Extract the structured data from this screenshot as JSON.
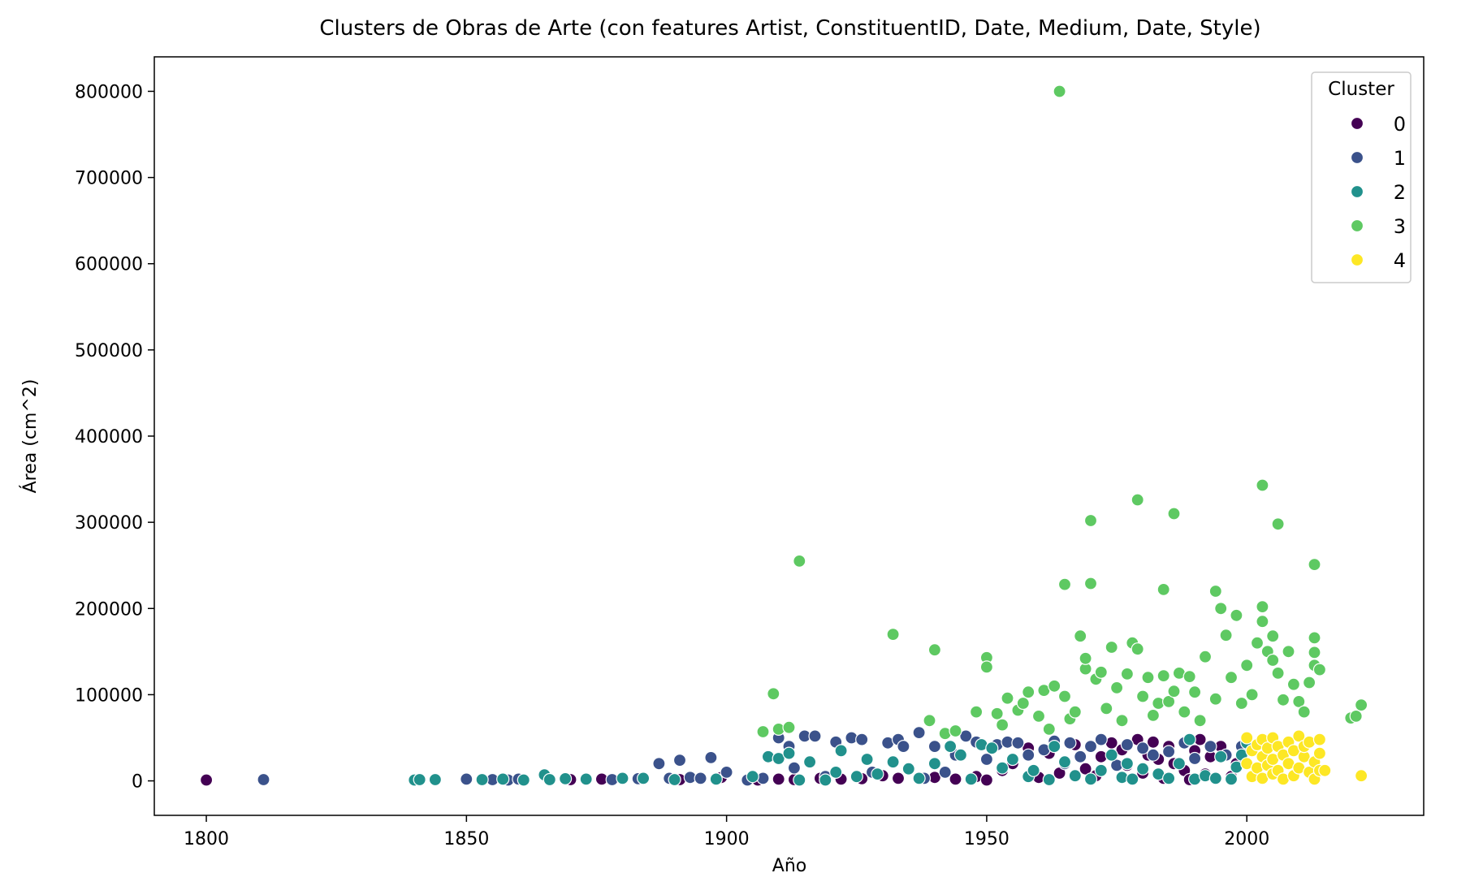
{
  "chart_data": {
    "type": "scatter",
    "title": "Clusters de Obras de Arte (con features Artist, ConstituentID, Date, Medium, Date, Style)",
    "xlabel": "Año",
    "ylabel": "Área (cm^2)",
    "xlim": [
      1790,
      2034
    ],
    "ylim": [
      -40000,
      840000
    ],
    "xticks": [
      1800,
      1850,
      1900,
      1950,
      2000
    ],
    "yticks": [
      0,
      100000,
      200000,
      300000,
      400000,
      500000,
      600000,
      700000,
      800000
    ],
    "grid": false,
    "legend": {
      "title": "Cluster",
      "placement": "top-right"
    },
    "series": [
      {
        "name": "0",
        "color": "#440154",
        "points": [
          [
            1800,
            1000
          ],
          [
            1870,
            1500
          ],
          [
            1876,
            2000
          ],
          [
            1891,
            1500
          ],
          [
            1899,
            4000
          ],
          [
            1906,
            1000
          ],
          [
            1910,
            2000
          ],
          [
            1913,
            1500
          ],
          [
            1918,
            3000
          ],
          [
            1922,
            2000
          ],
          [
            1926,
            2500
          ],
          [
            1930,
            6000
          ],
          [
            1933,
            3000
          ],
          [
            1937,
            2000
          ],
          [
            1940,
            4000
          ],
          [
            1944,
            2000
          ],
          [
            1948,
            5000
          ],
          [
            1950,
            1000
          ],
          [
            1953,
            12000
          ],
          [
            1955,
            20000
          ],
          [
            1958,
            38000
          ],
          [
            1960,
            4000
          ],
          [
            1962,
            32000
          ],
          [
            1964,
            9000
          ],
          [
            1967,
            42000
          ],
          [
            1969,
            14000
          ],
          [
            1971,
            6000
          ],
          [
            1972,
            28000
          ],
          [
            1974,
            44000
          ],
          [
            1976,
            36000
          ],
          [
            1977,
            18000
          ],
          [
            1979,
            48000
          ],
          [
            1980,
            9000
          ],
          [
            1981,
            30000
          ],
          [
            1982,
            45000
          ],
          [
            1983,
            25000
          ],
          [
            1984,
            3000
          ],
          [
            1985,
            40000
          ],
          [
            1986,
            20000
          ],
          [
            1988,
            12000
          ],
          [
            1989,
            1500
          ],
          [
            1990,
            35000
          ],
          [
            1991,
            48000
          ],
          [
            1992,
            8000
          ],
          [
            1993,
            28000
          ],
          [
            1995,
            40000
          ],
          [
            1997,
            5000
          ],
          [
            1998,
            20000
          ]
        ]
      },
      {
        "name": "1",
        "color": "#3b528b",
        "points": [
          [
            1811,
            1500
          ],
          [
            1850,
            2000
          ],
          [
            1855,
            1500
          ],
          [
            1858,
            1000
          ],
          [
            1860,
            2000
          ],
          [
            1878,
            1500
          ],
          [
            1883,
            2500
          ],
          [
            1887,
            20000
          ],
          [
            1889,
            3000
          ],
          [
            1891,
            24000
          ],
          [
            1893,
            4000
          ],
          [
            1895,
            3000
          ],
          [
            1897,
            27000
          ],
          [
            1900,
            10000
          ],
          [
            1904,
            1000
          ],
          [
            1907,
            3000
          ],
          [
            1910,
            50000
          ],
          [
            1912,
            40000
          ],
          [
            1913,
            15000
          ],
          [
            1915,
            52000
          ],
          [
            1917,
            52000
          ],
          [
            1919,
            5000
          ],
          [
            1921,
            45000
          ],
          [
            1924,
            50000
          ],
          [
            1926,
            48000
          ],
          [
            1928,
            10000
          ],
          [
            1931,
            44000
          ],
          [
            1933,
            48000
          ],
          [
            1934,
            40000
          ],
          [
            1937,
            56000
          ],
          [
            1938,
            3000
          ],
          [
            1940,
            40000
          ],
          [
            1942,
            10000
          ],
          [
            1944,
            30000
          ],
          [
            1946,
            52000
          ],
          [
            1948,
            45000
          ],
          [
            1950,
            25000
          ],
          [
            1952,
            42000
          ],
          [
            1954,
            45000
          ],
          [
            1956,
            44000
          ],
          [
            1958,
            30000
          ],
          [
            1961,
            36000
          ],
          [
            1963,
            46000
          ],
          [
            1965,
            20000
          ],
          [
            1966,
            44000
          ],
          [
            1968,
            28000
          ],
          [
            1970,
            40000
          ],
          [
            1972,
            48000
          ],
          [
            1975,
            18000
          ],
          [
            1977,
            42000
          ],
          [
            1980,
            38000
          ],
          [
            1982,
            30000
          ],
          [
            1985,
            34000
          ],
          [
            1988,
            44000
          ],
          [
            1990,
            26000
          ],
          [
            1993,
            40000
          ],
          [
            1996,
            30000
          ],
          [
            1999,
            40000
          ]
        ]
      },
      {
        "name": "2",
        "color": "#21918c",
        "points": [
          [
            1840,
            1000
          ],
          [
            1841,
            1500
          ],
          [
            1844,
            1500
          ],
          [
            1853,
            1500
          ],
          [
            1857,
            2000
          ],
          [
            1861,
            1000
          ],
          [
            1865,
            7000
          ],
          [
            1866,
            1500
          ],
          [
            1869,
            2500
          ],
          [
            1873,
            2000
          ],
          [
            1880,
            3000
          ],
          [
            1884,
            3000
          ],
          [
            1890,
            1500
          ],
          [
            1898,
            2000
          ],
          [
            1905,
            5000
          ],
          [
            1908,
            28000
          ],
          [
            1910,
            26000
          ],
          [
            1912,
            32000
          ],
          [
            1914,
            1000
          ],
          [
            1916,
            22000
          ],
          [
            1919,
            1000
          ],
          [
            1921,
            10000
          ],
          [
            1922,
            35000
          ],
          [
            1925,
            5000
          ],
          [
            1927,
            25000
          ],
          [
            1929,
            8000
          ],
          [
            1932,
            22000
          ],
          [
            1935,
            14000
          ],
          [
            1937,
            3000
          ],
          [
            1940,
            20000
          ],
          [
            1943,
            40000
          ],
          [
            1945,
            30000
          ],
          [
            1947,
            2000
          ],
          [
            1949,
            42000
          ],
          [
            1951,
            38000
          ],
          [
            1953,
            15000
          ],
          [
            1955,
            25000
          ],
          [
            1958,
            5000
          ],
          [
            1959,
            12000
          ],
          [
            1962,
            1500
          ],
          [
            1963,
            40000
          ],
          [
            1965,
            22000
          ],
          [
            1967,
            6000
          ],
          [
            1970,
            2000
          ],
          [
            1972,
            12000
          ],
          [
            1974,
            30000
          ],
          [
            1976,
            4000
          ],
          [
            1977,
            20000
          ],
          [
            1978,
            2000
          ],
          [
            1980,
            14000
          ],
          [
            1983,
            8000
          ],
          [
            1985,
            3000
          ],
          [
            1987,
            20000
          ],
          [
            1989,
            48000
          ],
          [
            1990,
            2000
          ],
          [
            1992,
            6000
          ],
          [
            1994,
            3000
          ],
          [
            1995,
            28000
          ],
          [
            1997,
            2000
          ],
          [
            1998,
            16000
          ],
          [
            1999,
            30000
          ],
          [
            2000,
            44000
          ]
        ]
      },
      {
        "name": "3",
        "color": "#5ec962",
        "points": [
          [
            1964,
            800000
          ],
          [
            1914,
            255000
          ],
          [
            1932,
            170000
          ],
          [
            1940,
            152000
          ],
          [
            1909,
            101000
          ],
          [
            1907,
            57000
          ],
          [
            1910,
            60000
          ],
          [
            1912,
            62000
          ],
          [
            1939,
            70000
          ],
          [
            1942,
            55000
          ],
          [
            1944,
            58000
          ],
          [
            1948,
            80000
          ],
          [
            1950,
            143000
          ],
          [
            1950,
            132000
          ],
          [
            1952,
            78000
          ],
          [
            1953,
            65000
          ],
          [
            1954,
            96000
          ],
          [
            1956,
            82000
          ],
          [
            1957,
            90000
          ],
          [
            1958,
            103000
          ],
          [
            1960,
            75000
          ],
          [
            1961,
            105000
          ],
          [
            1962,
            60000
          ],
          [
            1963,
            110000
          ],
          [
            1965,
            228000
          ],
          [
            1965,
            98000
          ],
          [
            1966,
            72000
          ],
          [
            1967,
            80000
          ],
          [
            1968,
            168000
          ],
          [
            1969,
            130000
          ],
          [
            1969,
            142000
          ],
          [
            1970,
            302000
          ],
          [
            1970,
            229000
          ],
          [
            1971,
            118000
          ],
          [
            1972,
            126000
          ],
          [
            1973,
            84000
          ],
          [
            1974,
            155000
          ],
          [
            1975,
            108000
          ],
          [
            1976,
            70000
          ],
          [
            1977,
            124000
          ],
          [
            1978,
            160000
          ],
          [
            1979,
            326000
          ],
          [
            1979,
            153000
          ],
          [
            1980,
            98000
          ],
          [
            1981,
            120000
          ],
          [
            1982,
            76000
          ],
          [
            1983,
            90000
          ],
          [
            1984,
            222000
          ],
          [
            1984,
            122000
          ],
          [
            1985,
            92000
          ],
          [
            1986,
            310000
          ],
          [
            1986,
            104000
          ],
          [
            1987,
            125000
          ],
          [
            1988,
            80000
          ],
          [
            1989,
            121000
          ],
          [
            1990,
            103000
          ],
          [
            1991,
            70000
          ],
          [
            1992,
            144000
          ],
          [
            1994,
            220000
          ],
          [
            1994,
            95000
          ],
          [
            1995,
            200000
          ],
          [
            1996,
            169000
          ],
          [
            1997,
            120000
          ],
          [
            1998,
            192000
          ],
          [
            1999,
            90000
          ],
          [
            2000,
            134000
          ],
          [
            2001,
            100000
          ],
          [
            2002,
            160000
          ],
          [
            2003,
            343000
          ],
          [
            2003,
            202000
          ],
          [
            2003,
            185000
          ],
          [
            2004,
            150000
          ],
          [
            2005,
            168000
          ],
          [
            2005,
            140000
          ],
          [
            2006,
            298000
          ],
          [
            2006,
            125000
          ],
          [
            2007,
            94000
          ],
          [
            2008,
            150000
          ],
          [
            2009,
            112000
          ],
          [
            2010,
            92000
          ],
          [
            2011,
            80000
          ],
          [
            2012,
            114000
          ],
          [
            2013,
            251000
          ],
          [
            2013,
            166000
          ],
          [
            2013,
            149000
          ],
          [
            2013,
            134000
          ],
          [
            2014,
            129000
          ],
          [
            2020,
            73000
          ],
          [
            2021,
            75000
          ],
          [
            2022,
            88000
          ]
        ]
      },
      {
        "name": "4",
        "color": "#fde725",
        "points": [
          [
            2000,
            20000
          ],
          [
            2000,
            50000
          ],
          [
            2001,
            35000
          ],
          [
            2001,
            5000
          ],
          [
            2002,
            42000
          ],
          [
            2002,
            15000
          ],
          [
            2003,
            28000
          ],
          [
            2003,
            48000
          ],
          [
            2003,
            3000
          ],
          [
            2004,
            18000
          ],
          [
            2004,
            38000
          ],
          [
            2005,
            50000
          ],
          [
            2005,
            8000
          ],
          [
            2005,
            25000
          ],
          [
            2006,
            40000
          ],
          [
            2006,
            12000
          ],
          [
            2007,
            30000
          ],
          [
            2007,
            2000
          ],
          [
            2008,
            45000
          ],
          [
            2008,
            20000
          ],
          [
            2009,
            35000
          ],
          [
            2009,
            6000
          ],
          [
            2010,
            52000
          ],
          [
            2010,
            15000
          ],
          [
            2011,
            28000
          ],
          [
            2011,
            40000
          ],
          [
            2012,
            10000
          ],
          [
            2012,
            45000
          ],
          [
            2013,
            22000
          ],
          [
            2013,
            2000
          ],
          [
            2014,
            48000
          ],
          [
            2014,
            32000
          ],
          [
            2014,
            12000
          ],
          [
            2015,
            12000
          ],
          [
            2022,
            6000
          ]
        ]
      }
    ]
  }
}
